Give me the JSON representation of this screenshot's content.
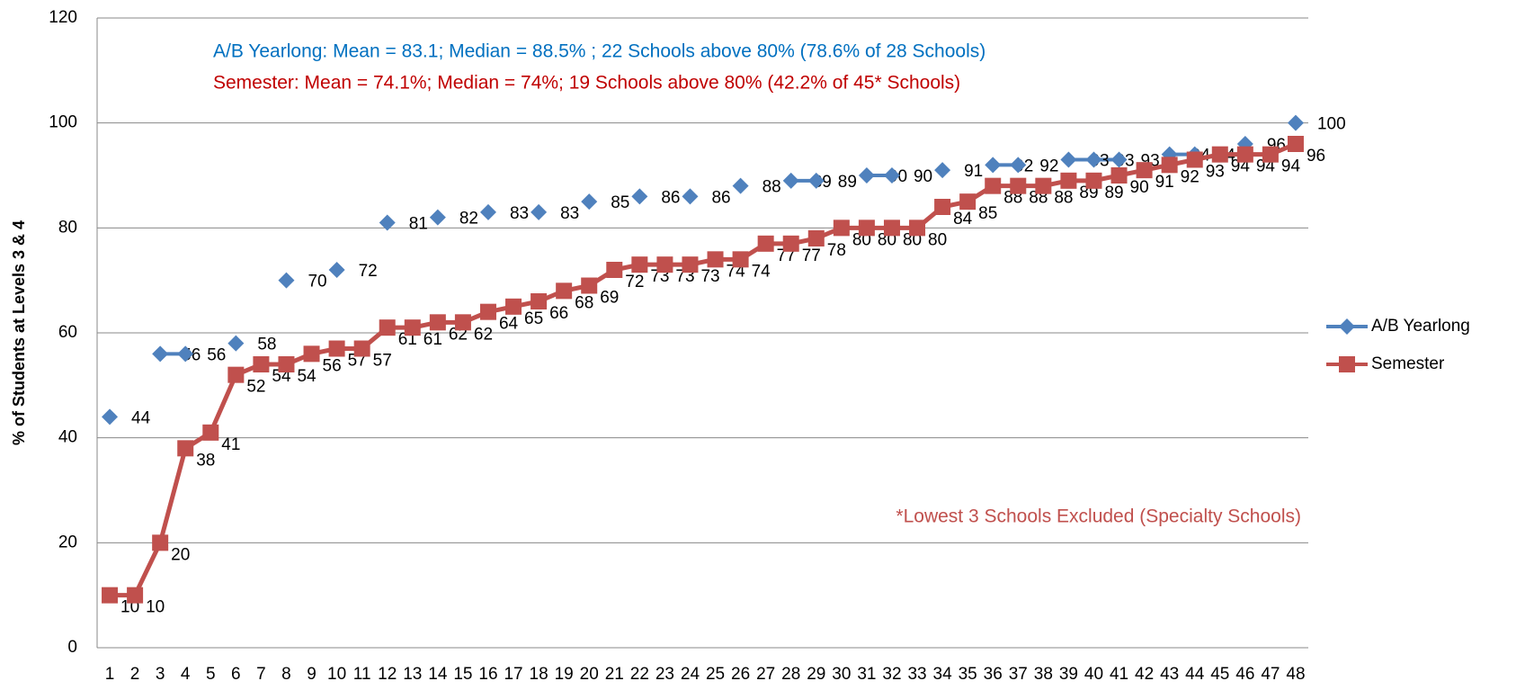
{
  "chart_data": {
    "type": "line",
    "y_label": "% of Students at Levels 3 & 4",
    "annotations": [
      {
        "text": "A/B Yearlong: Mean = 83.1; Median = 88.5% ; 22 Schools above 80% (78.6% of 28 Schools)",
        "color": "#0070c0"
      },
      {
        "text": "Semester:  Mean = 74.1%; Median = 74%; 19 Schools above 80% (42.2% of 45* Schools)",
        "color": "#c00000"
      },
      {
        "text": "*Lowest 3 Schools Excluded (Specialty Schools)",
        "color": "#c0504d"
      }
    ],
    "categories": [
      "1",
      "2",
      "3",
      "4",
      "5",
      "6",
      "7",
      "8",
      "9",
      "10",
      "11",
      "12",
      "13",
      "14",
      "15",
      "16",
      "17",
      "18",
      "19",
      "20",
      "21",
      "22",
      "23",
      "24",
      "25",
      "26",
      "27",
      "28",
      "29",
      "30",
      "31",
      "32",
      "33",
      "34",
      "35",
      "36",
      "37",
      "38",
      "39",
      "40",
      "41",
      "42",
      "43",
      "44",
      "45",
      "46",
      "47",
      "48"
    ],
    "series": [
      {
        "name": "A/B Yearlong",
        "color": "#4f81bd",
        "marker": "diamond",
        "values": [
          44,
          null,
          56,
          56,
          null,
          58,
          null,
          70,
          null,
          72,
          null,
          81,
          null,
          82,
          null,
          83,
          null,
          83,
          null,
          85,
          null,
          86,
          null,
          86,
          null,
          88,
          null,
          89,
          89,
          null,
          90,
          90,
          null,
          91,
          null,
          92,
          92,
          null,
          93,
          93,
          93,
          null,
          94,
          94,
          null,
          96,
          null,
          100
        ]
      },
      {
        "name": "Semester",
        "color": "#c0504d",
        "marker": "square",
        "values": [
          10,
          10,
          20,
          38,
          41,
          52,
          54,
          54,
          56,
          57,
          57,
          61,
          61,
          62,
          62,
          64,
          65,
          66,
          68,
          69,
          72,
          73,
          73,
          73,
          74,
          74,
          77,
          77,
          78,
          80,
          80,
          80,
          80,
          84,
          85,
          88,
          88,
          88,
          89,
          89,
          90,
          91,
          92,
          93,
          94,
          94,
          94,
          96
        ]
      }
    ],
    "ylim": [
      0,
      120
    ],
    "yticks": [
      0,
      20,
      40,
      60,
      80,
      100,
      120
    ],
    "grid": true,
    "legend": "right"
  }
}
